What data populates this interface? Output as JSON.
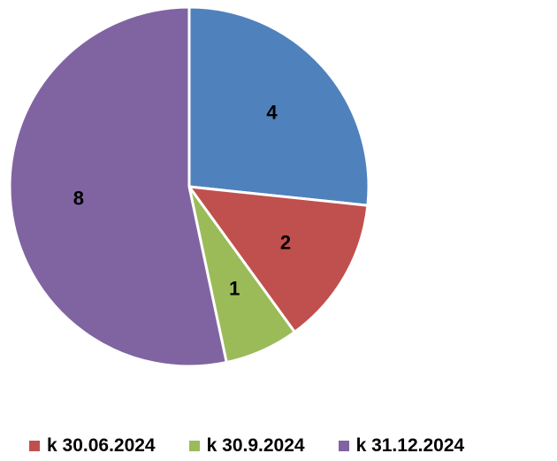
{
  "chart_data": {
    "type": "pie",
    "categories": [
      "",
      "k 30.06.2024",
      "k 30.9.2024",
      "k 31.12.2024"
    ],
    "values": [
      4,
      2,
      1,
      8
    ],
    "colors": [
      "#4f81bd",
      "#c0504d",
      "#9bbb59",
      "#8064a2"
    ],
    "legend": [
      {
        "label": "k 30.06.2024",
        "color": "#c0504d"
      },
      {
        "label": "k 30.9.2024",
        "color": "#9bbb59"
      },
      {
        "label": "k 31.12.2024",
        "color": "#8064a2"
      }
    ],
    "legend_position": "bottom",
    "start_angle": "12 o'clock",
    "direction": "clockwise"
  }
}
